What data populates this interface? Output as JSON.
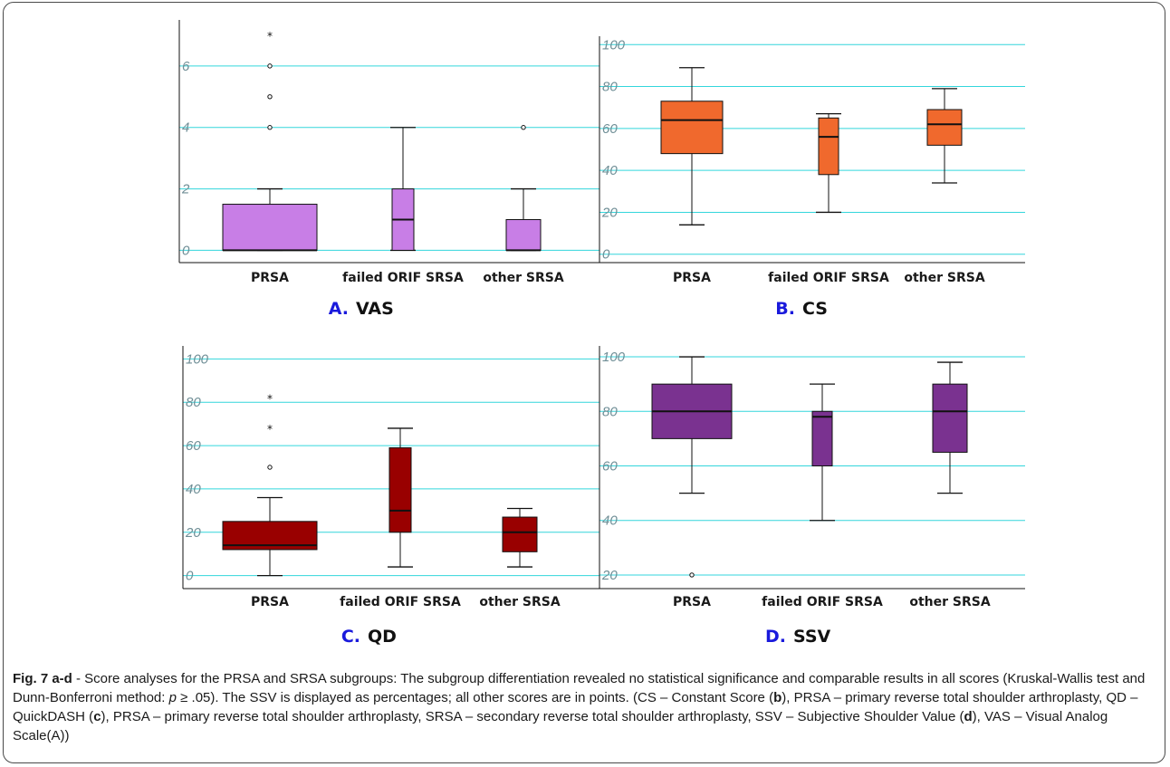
{
  "colors": {
    "grid": "#33d6dc",
    "axis": "#111111",
    "outlier": "#111111"
  },
  "chart_data": [
    {
      "type": "box",
      "panel_letter": "A.",
      "panel_name": "VAS",
      "color": "#c87ee6",
      "ylim": [
        -0.4,
        7.5
      ],
      "yticks": [
        0,
        2,
        4,
        6
      ],
      "grid": true,
      "categories": [
        "PRSA",
        "failed ORIF SRSA",
        "other SRSA"
      ],
      "boxes": [
        {
          "min": 0,
          "q1": 0,
          "median": 0,
          "q3": 1.5,
          "max": 2,
          "outliers": [
            4,
            5,
            6
          ],
          "extremes": [
            7
          ]
        },
        {
          "min": 0,
          "q1": 0,
          "median": 1,
          "q3": 2,
          "max": 4,
          "outliers": [],
          "extremes": []
        },
        {
          "min": 0,
          "q1": 0,
          "median": 0,
          "q3": 1,
          "max": 2,
          "outliers": [
            4
          ],
          "extremes": []
        }
      ]
    },
    {
      "type": "box",
      "panel_letter": "B.",
      "panel_name": "CS",
      "color": "#f0692d",
      "ylim": [
        -4,
        104
      ],
      "yticks": [
        0,
        20,
        40,
        60,
        80,
        100
      ],
      "grid": true,
      "categories": [
        "PRSA",
        "failed ORIF SRSA",
        "other SRSA"
      ],
      "boxes": [
        {
          "min": 14,
          "q1": 48,
          "median": 64,
          "q3": 73,
          "max": 89,
          "outliers": [],
          "extremes": []
        },
        {
          "min": 20,
          "q1": 38,
          "median": 56,
          "q3": 65,
          "max": 67,
          "outliers": [],
          "extremes": []
        },
        {
          "min": 34,
          "q1": 52,
          "median": 62,
          "q3": 69,
          "max": 79,
          "outliers": [],
          "extremes": []
        }
      ]
    },
    {
      "type": "box",
      "panel_letter": "C.",
      "panel_name": "QD",
      "color": "#990000",
      "ylim": [
        -6,
        106
      ],
      "yticks": [
        0,
        20,
        40,
        60,
        80,
        100
      ],
      "grid": true,
      "categories": [
        "PRSA",
        "failed ORIF SRSA",
        "other SRSA"
      ],
      "boxes": [
        {
          "min": 0,
          "q1": 12,
          "median": 14,
          "q3": 25,
          "max": 36,
          "outliers": [
            50
          ],
          "extremes": [
            68,
            82
          ]
        },
        {
          "min": 4,
          "q1": 20,
          "median": 30,
          "q3": 59,
          "max": 68,
          "outliers": [],
          "extremes": []
        },
        {
          "min": 4,
          "q1": 11,
          "median": 20,
          "q3": 27,
          "max": 31,
          "outliers": [],
          "extremes": []
        }
      ]
    },
    {
      "type": "box",
      "panel_letter": "D.",
      "panel_name": "SSV",
      "color": "#7a3290",
      "ylim": [
        15,
        104
      ],
      "yticks": [
        20,
        40,
        60,
        80,
        100
      ],
      "grid": true,
      "categories": [
        "PRSA",
        "failed ORIF SRSA",
        "other SRSA"
      ],
      "boxes": [
        {
          "min": 50,
          "q1": 70,
          "median": 80,
          "q3": 90,
          "max": 100,
          "outliers": [
            20
          ],
          "extremes": []
        },
        {
          "min": 40,
          "q1": 60,
          "median": 78,
          "q3": 80,
          "max": 90,
          "outliers": [],
          "extremes": []
        },
        {
          "min": 50,
          "q1": 65,
          "median": 80,
          "q3": 90,
          "max": 98,
          "outliers": [],
          "extremes": []
        }
      ]
    }
  ],
  "caption": {
    "fig_label": "Fig. 7 a-d",
    "part1": " - Score analyses for the PRSA and SRSA subgroups: The subgroup differentiation revealed no statistical significance and comparable results in all scores (Kruskal-Wallis test and Dunn-Bonferroni method: ",
    "p_symbol": "p",
    "part2": " ≥ .05). The SSV is displayed as percentages; all other scores are in points. (CS – Constant Score (",
    "ref_b": "b",
    "part3": "), PRSA – primary reverse total shoulder arthroplasty, QD – QuickDASH (",
    "ref_c": "c",
    "part4": "), PRSA – primary reverse total shoulder arthroplasty, SRSA – secondary reverse total shoulder arthroplasty, SSV – Subjective Shoulder Value (",
    "ref_d": "d",
    "part5": "), VAS – Visual Analog Scale(A))"
  }
}
